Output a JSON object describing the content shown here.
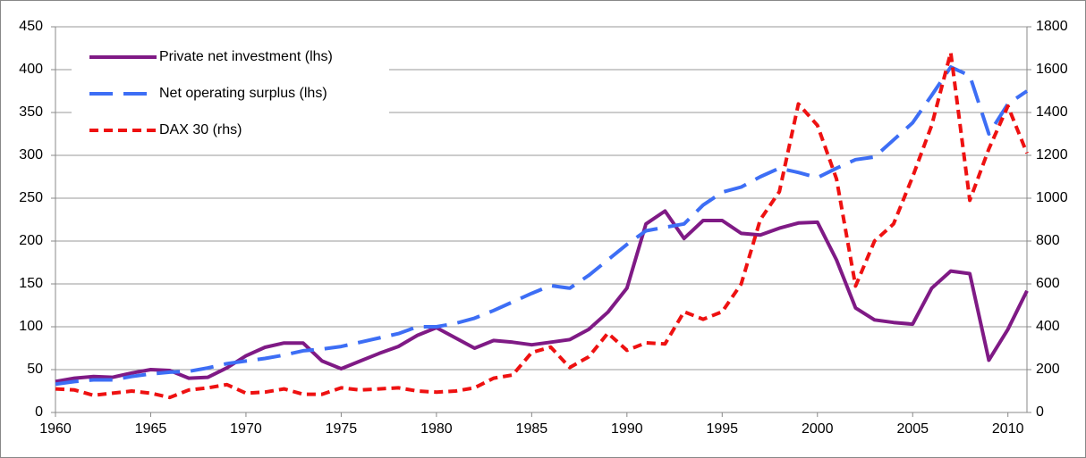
{
  "chart_data": {
    "type": "line",
    "x": [
      1960,
      1961,
      1962,
      1963,
      1964,
      1965,
      1966,
      1967,
      1968,
      1969,
      1970,
      1971,
      1972,
      1973,
      1974,
      1975,
      1976,
      1977,
      1978,
      1979,
      1980,
      1981,
      1982,
      1983,
      1984,
      1985,
      1986,
      1987,
      1988,
      1989,
      1990,
      1991,
      1992,
      1993,
      1994,
      1995,
      1996,
      1997,
      1998,
      1999,
      2000,
      2001,
      2002,
      2003,
      2004,
      2005,
      2006,
      2007,
      2008,
      2009,
      2010,
      2011
    ],
    "series": [
      {
        "name": "Private net investment (lhs)",
        "color": "#7f1a85",
        "dash": "solid",
        "values": [
          36,
          40,
          42,
          41,
          46,
          50,
          49,
          40,
          41,
          52,
          66,
          76,
          81,
          81,
          60,
          51,
          60,
          69,
          77,
          90,
          99,
          87,
          75,
          84,
          82,
          79,
          82,
          85,
          97,
          117,
          145,
          220,
          235,
          203,
          224,
          224,
          209,
          207,
          215,
          221,
          222,
          178,
          122,
          108,
          105,
          103,
          145,
          165,
          162,
          61,
          97,
          142
        ]
      },
      {
        "name": "Net operating surplus (lhs)",
        "color": "#3d6ef5",
        "dash": "long",
        "values": [
          33,
          36,
          38,
          38,
          42,
          45,
          47,
          48,
          52,
          57,
          60,
          63,
          67,
          72,
          74,
          77,
          82,
          87,
          92,
          100,
          100,
          104,
          110,
          119,
          129,
          139,
          148,
          145,
          160,
          178,
          196,
          212,
          216,
          220,
          242,
          257,
          263,
          275,
          285,
          280,
          274,
          285,
          295,
          298,
          318,
          338,
          370,
          403,
          393,
          325,
          360,
          375
        ]
      },
      {
        "name": "DAX 30 (rhs)",
        "color": "#ee1111",
        "dash": "short",
        "axis": "y2",
        "values": [
          110,
          105,
          80,
          90,
          100,
          90,
          70,
          105,
          115,
          130,
          90,
          95,
          110,
          85,
          85,
          115,
          105,
          110,
          115,
          100,
          95,
          100,
          115,
          160,
          175,
          280,
          305,
          210,
          260,
          370,
          290,
          325,
          320,
          470,
          435,
          470,
          600,
          900,
          1030,
          1440,
          1340,
          1090,
          590,
          800,
          880,
          1100,
          1340,
          1680,
          990,
          1230,
          1430,
          1210
        ]
      }
    ],
    "xlim": [
      1960,
      2011
    ],
    "xticks": [
      1960,
      1965,
      1970,
      1975,
      1980,
      1985,
      1990,
      1995,
      2000,
      2005,
      2010
    ],
    "ylim": [
      0,
      450
    ],
    "yticks": [
      0,
      50,
      100,
      150,
      200,
      250,
      300,
      350,
      400,
      450
    ],
    "y2lim": [
      0,
      1800
    ],
    "y2ticks": [
      0,
      200,
      400,
      600,
      800,
      1000,
      1200,
      1400,
      1600,
      1800
    ],
    "grid": true,
    "legend": "upper-left"
  }
}
